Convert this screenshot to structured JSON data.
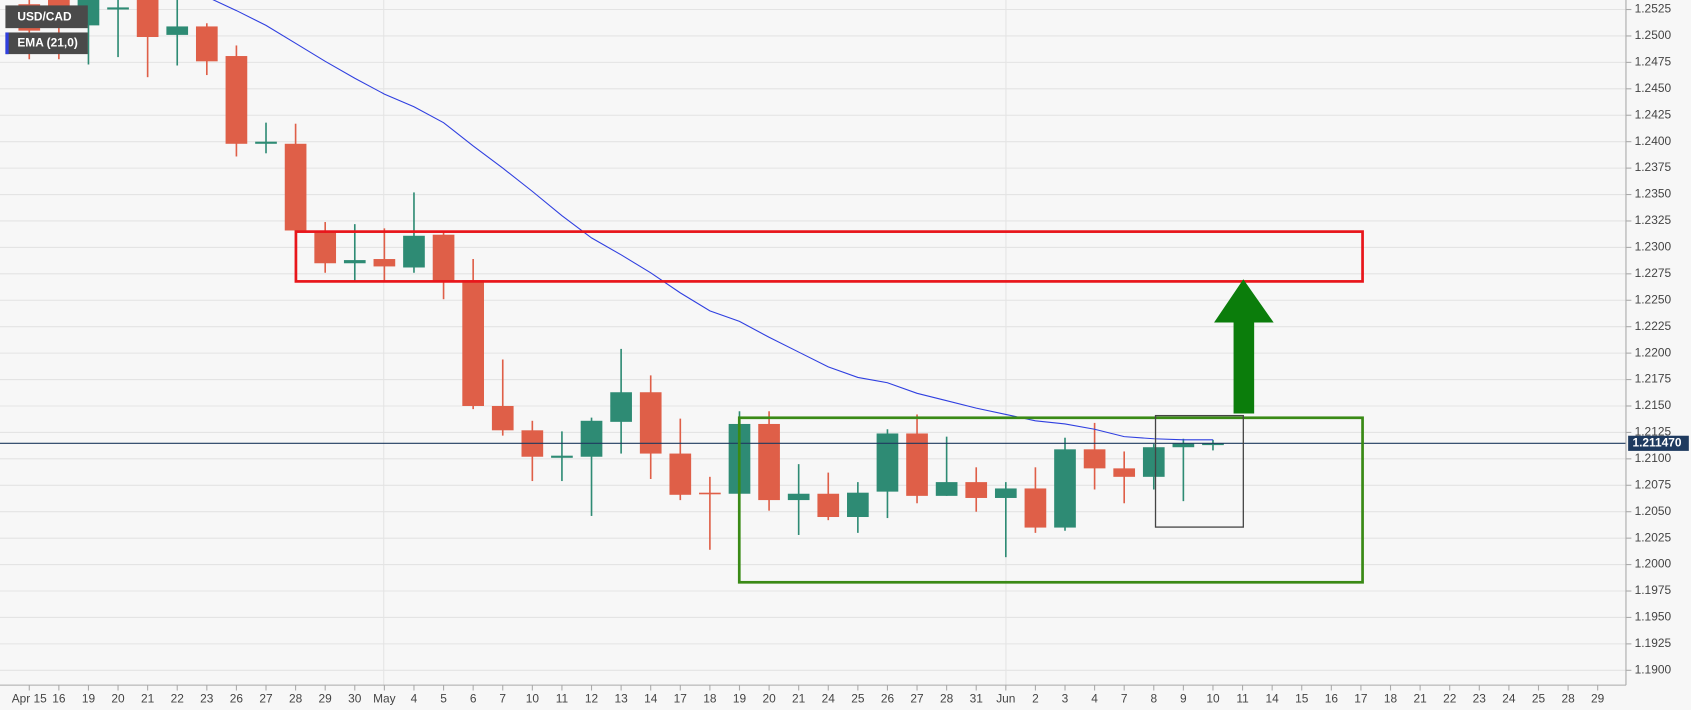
{
  "chart_data": {
    "type": "candlestick",
    "categories": [
      "Apr 15",
      "16",
      "19",
      "20",
      "21",
      "22",
      "23",
      "26",
      "27",
      "28",
      "29",
      "30",
      "May",
      "4",
      "5",
      "6",
      "7",
      "10",
      "11",
      "12",
      "13",
      "14",
      "17",
      "18",
      "19",
      "20",
      "21",
      "24",
      "25",
      "26",
      "27",
      "28",
      "31",
      "Jun",
      "2",
      "3",
      "4",
      "7",
      "8",
      "9",
      "10",
      "11",
      "14",
      "15",
      "16",
      "17",
      "18",
      "21",
      "22",
      "23",
      "24",
      "25",
      "28",
      "29"
    ],
    "series": [
      {
        "name": "USD/CAD",
        "up_color": "#2e8b74",
        "down_color": "#df5f48",
        "open": [
          1.253,
          1.2535,
          1.251,
          1.2525,
          1.2545,
          1.2501,
          1.2509,
          1.2481,
          1.2398,
          1.2398,
          1.2314,
          1.2285,
          1.2289,
          1.2281,
          1.2312,
          1.2269,
          1.215,
          1.2127,
          1.2101,
          1.2102,
          1.2135,
          1.2163,
          1.2105,
          1.2068,
          1.2067,
          1.2133,
          1.2061,
          1.2067,
          1.2045,
          1.2069,
          1.2124,
          1.2065,
          1.2078,
          1.2063,
          1.2072,
          1.2035,
          1.2109,
          1.2091,
          1.2083,
          1.2111,
          1.2113,
          null,
          null,
          null,
          null,
          null,
          null,
          null,
          null,
          null,
          null,
          null,
          null,
          null
        ],
        "high": [
          1.254,
          1.2545,
          1.254,
          1.2535,
          1.255,
          1.2535,
          1.2512,
          1.2491,
          1.2418,
          1.2417,
          1.2324,
          1.2322,
          1.2318,
          1.2352,
          1.2314,
          1.2289,
          1.2194,
          1.2136,
          1.2126,
          1.2139,
          1.2204,
          1.2179,
          1.2138,
          1.2083,
          1.2145,
          1.2145,
          1.2095,
          1.2087,
          1.2078,
          1.2128,
          1.2142,
          1.2121,
          1.2092,
          1.2078,
          1.2092,
          1.212,
          1.2134,
          1.2107,
          1.2114,
          1.2119,
          1.2118,
          null,
          null,
          null,
          null,
          null,
          null,
          null,
          null,
          null,
          null,
          null,
          null,
          null
        ],
        "low": [
          1.2478,
          1.2478,
          1.2473,
          1.248,
          1.2461,
          1.2472,
          1.2463,
          1.2386,
          1.2389,
          1.2314,
          1.2276,
          1.2268,
          1.2268,
          1.2276,
          1.2251,
          1.2147,
          1.2122,
          1.2079,
          1.2079,
          1.2046,
          1.2105,
          1.2081,
          1.2061,
          1.2014,
          1.2053,
          1.2051,
          1.2028,
          1.2042,
          1.203,
          1.2044,
          1.2058,
          1.2065,
          1.205,
          1.2007,
          1.203,
          1.2032,
          1.2071,
          1.2058,
          1.2071,
          1.206,
          1.2108,
          null,
          null,
          null,
          null,
          null,
          null,
          null,
          null,
          null,
          null,
          null,
          null,
          null
        ],
        "close": [
          1.2505,
          1.251,
          1.2535,
          1.2527,
          1.2499,
          1.2509,
          1.2476,
          1.2398,
          1.24,
          1.2316,
          1.2285,
          1.2288,
          1.2282,
          1.2311,
          1.2268,
          1.215,
          1.2127,
          1.2102,
          1.2103,
          1.2136,
          1.2163,
          1.2105,
          1.2066,
          1.2067,
          1.2133,
          1.2061,
          1.2067,
          1.2045,
          1.2068,
          1.2124,
          1.2065,
          1.2078,
          1.2063,
          1.2072,
          1.2035,
          1.2109,
          1.2091,
          1.2083,
          1.2111,
          1.2115,
          1.2115,
          null,
          null,
          null,
          null,
          null,
          null,
          null,
          null,
          null,
          null,
          null,
          null,
          null
        ]
      },
      {
        "name": "EMA (21,0)",
        "color": "#2f3fe0",
        "values": [
          null,
          null,
          null,
          null,
          null,
          null,
          1.2537,
          1.2524,
          1.251,
          1.2493,
          1.2476,
          1.246,
          1.2445,
          1.2433,
          1.2418,
          1.2396,
          1.2375,
          1.2353,
          1.233,
          1.2309,
          1.2293,
          1.2276,
          1.2257,
          1.224,
          1.223,
          1.2215,
          1.2201,
          1.2187,
          1.2177,
          1.2172,
          1.2162,
          1.2155,
          1.2148,
          1.2142,
          1.2136,
          1.2133,
          1.2128,
          1.2121,
          1.2119,
          1.2118,
          1.2118,
          null,
          null,
          null,
          null,
          null,
          null,
          null,
          null,
          null,
          null,
          null,
          null,
          null
        ]
      }
    ],
    "last_price": {
      "value": 1.21147,
      "label": "1.211470"
    },
    "ylim": [
      1.1886,
      1.2534
    ],
    "yticks": [
      {
        "value": 1.19,
        "label": "1.1900"
      },
      {
        "value": 1.1925,
        "label": "1.1925"
      },
      {
        "value": 1.195,
        "label": "1.1950"
      },
      {
        "value": 1.1975,
        "label": "1.1975"
      },
      {
        "value": 1.2,
        "label": "1.2000"
      },
      {
        "value": 1.2025,
        "label": "1.2025"
      },
      {
        "value": 1.205,
        "label": "1.2050"
      },
      {
        "value": 1.2075,
        "label": "1.2075"
      },
      {
        "value": 1.21,
        "label": "1.2100"
      },
      {
        "value": 1.2125,
        "label": "1.2125"
      },
      {
        "value": 1.215,
        "label": "1.2150"
      },
      {
        "value": 1.2175,
        "label": "1.2175"
      },
      {
        "value": 1.22,
        "label": "1.2200"
      },
      {
        "value": 1.2225,
        "label": "1.2225"
      },
      {
        "value": 1.225,
        "label": "1.2250"
      },
      {
        "value": 1.2275,
        "label": "1.2275"
      },
      {
        "value": 1.23,
        "label": "1.2300"
      },
      {
        "value": 1.2325,
        "label": "1.2325"
      },
      {
        "value": 1.235,
        "label": "1.2350"
      },
      {
        "value": 1.2375,
        "label": "1.2375"
      },
      {
        "value": 1.24,
        "label": "1.2400"
      },
      {
        "value": 1.2425,
        "label": "1.2425"
      },
      {
        "value": 1.245,
        "label": "1.2450"
      },
      {
        "value": 1.2475,
        "label": "1.2475"
      },
      {
        "value": 1.25,
        "label": "1.2500"
      },
      {
        "value": 1.2525,
        "label": "1.2525"
      }
    ],
    "grid": true
  }
}
